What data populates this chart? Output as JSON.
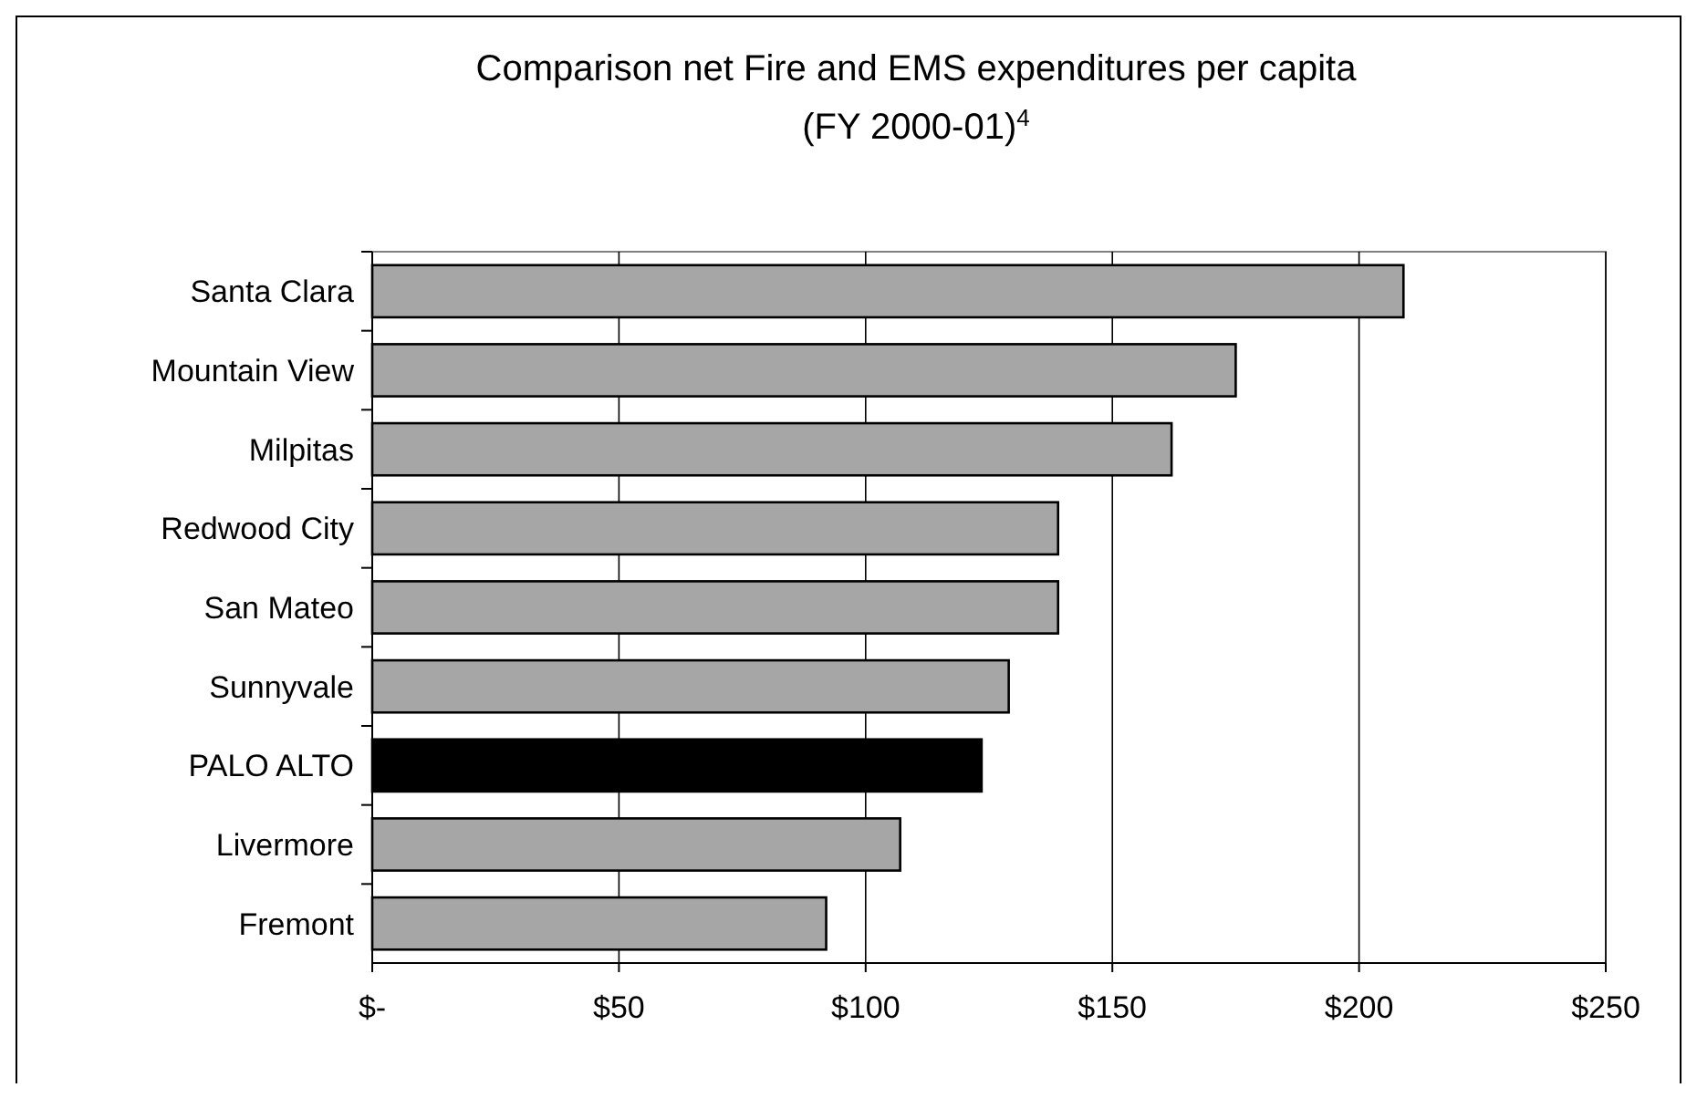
{
  "chart_data": {
    "type": "bar",
    "orientation": "horizontal",
    "title": "Comparison net Fire and EMS expenditures per capita\n(FY 2000-01)$^{4}$",
    "categories": [
      "Santa Clara",
      "Mountain View",
      "Milpitas",
      "Redwood City",
      "San Mateo",
      "Sunnyvale",
      "PALO ALTO",
      "Livermore",
      "Fremont"
    ],
    "values": [
      209,
      175,
      162,
      139,
      139,
      129,
      123.5,
      107,
      92
    ],
    "colors": [
      "#a6a6a6",
      "#a6a6a6",
      "#a6a6a6",
      "#a6a6a6",
      "#a6a6a6",
      "#a6a6a6",
      "#000000",
      "#a6a6a6",
      "#a6a6a6"
    ],
    "xlim": [
      0,
      250
    ],
    "xticks": [
      {
        "value": 0,
        "label": "$-"
      },
      {
        "value": 50,
        "label": "$50"
      },
      {
        "value": 100,
        "label": "$100"
      },
      {
        "value": 150,
        "label": "$150"
      },
      {
        "value": 200,
        "label": "$200"
      },
      {
        "value": 250,
        "label": "$250"
      }
    ],
    "grid": "x"
  }
}
